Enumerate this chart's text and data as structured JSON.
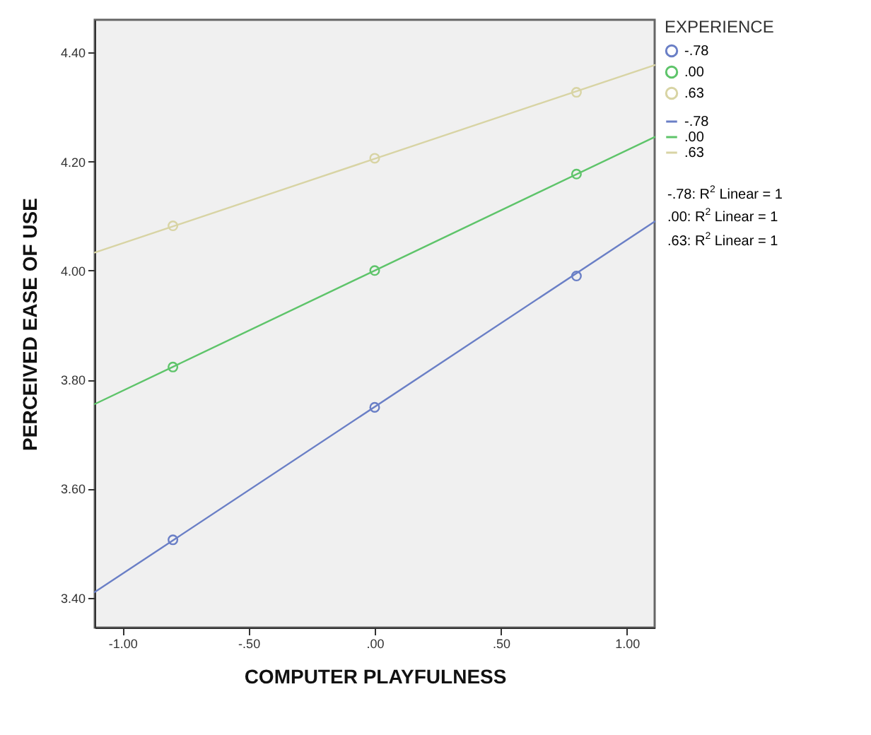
{
  "chart_data": {
    "type": "scatter",
    "xlabel": "COMPUTER PLAYFULNESS",
    "ylabel": "PERCEIVED EASE OF USE",
    "legend_title": "EXPERIENCE",
    "xlim": [
      -1.11,
      1.11
    ],
    "ylim": [
      3.345,
      4.46
    ],
    "xticks": [
      {
        "value": -1,
        "label": "-1.00"
      },
      {
        "value": -0.5,
        "label": "-.50"
      },
      {
        "value": 0,
        "label": ".00"
      },
      {
        "value": 0.5,
        "label": ".50"
      },
      {
        "value": 1,
        "label": "1.00"
      }
    ],
    "yticks": [
      {
        "value": 3.4,
        "label": "3.40"
      },
      {
        "value": 3.6,
        "label": "3.60"
      },
      {
        "value": 3.8,
        "label": "3.80"
      },
      {
        "value": 4.0,
        "label": "4.00"
      },
      {
        "value": 4.2,
        "label": "4.20"
      },
      {
        "value": 4.4,
        "label": "4.40"
      }
    ],
    "grid": false,
    "legend": "right",
    "series": [
      {
        "name": "-.78",
        "marker": "circle",
        "color": "#6a7fc6",
        "x": [
          -0.8,
          0,
          0.8
        ],
        "values": [
          3.506,
          3.749,
          3.99
        ]
      },
      {
        "name": ".00",
        "marker": "circle",
        "color": "#5ec46a",
        "x": [
          -0.8,
          0,
          0.8
        ],
        "values": [
          3.823,
          4.0,
          4.177
        ]
      },
      {
        "name": ".63",
        "marker": "circle",
        "color": "#d8d4a4",
        "x": [
          -0.8,
          0,
          0.8
        ],
        "values": [
          4.082,
          4.206,
          4.327
        ]
      },
      {
        "name": "-.78",
        "type": "line",
        "marker": "none",
        "color": "#6a7fc6",
        "x": [
          -1.11,
          1.11
        ],
        "values": [
          3.41,
          4.09
        ]
      },
      {
        "name": ".00",
        "type": "line",
        "marker": "none",
        "color": "#5ec46a",
        "x": [
          -1.11,
          1.11
        ],
        "values": [
          3.755,
          4.245
        ]
      },
      {
        "name": ".63",
        "type": "line",
        "marker": "none",
        "color": "#d8d4a4",
        "x": [
          -1.11,
          1.11
        ],
        "values": [
          4.033,
          4.377
        ]
      }
    ],
    "annotations": [
      "-.78: R$^{2}$ Linear = 1",
      ".00: R$^{2}$ Linear = 1",
      ".63: R$^{2}$ Linear = 1"
    ]
  }
}
